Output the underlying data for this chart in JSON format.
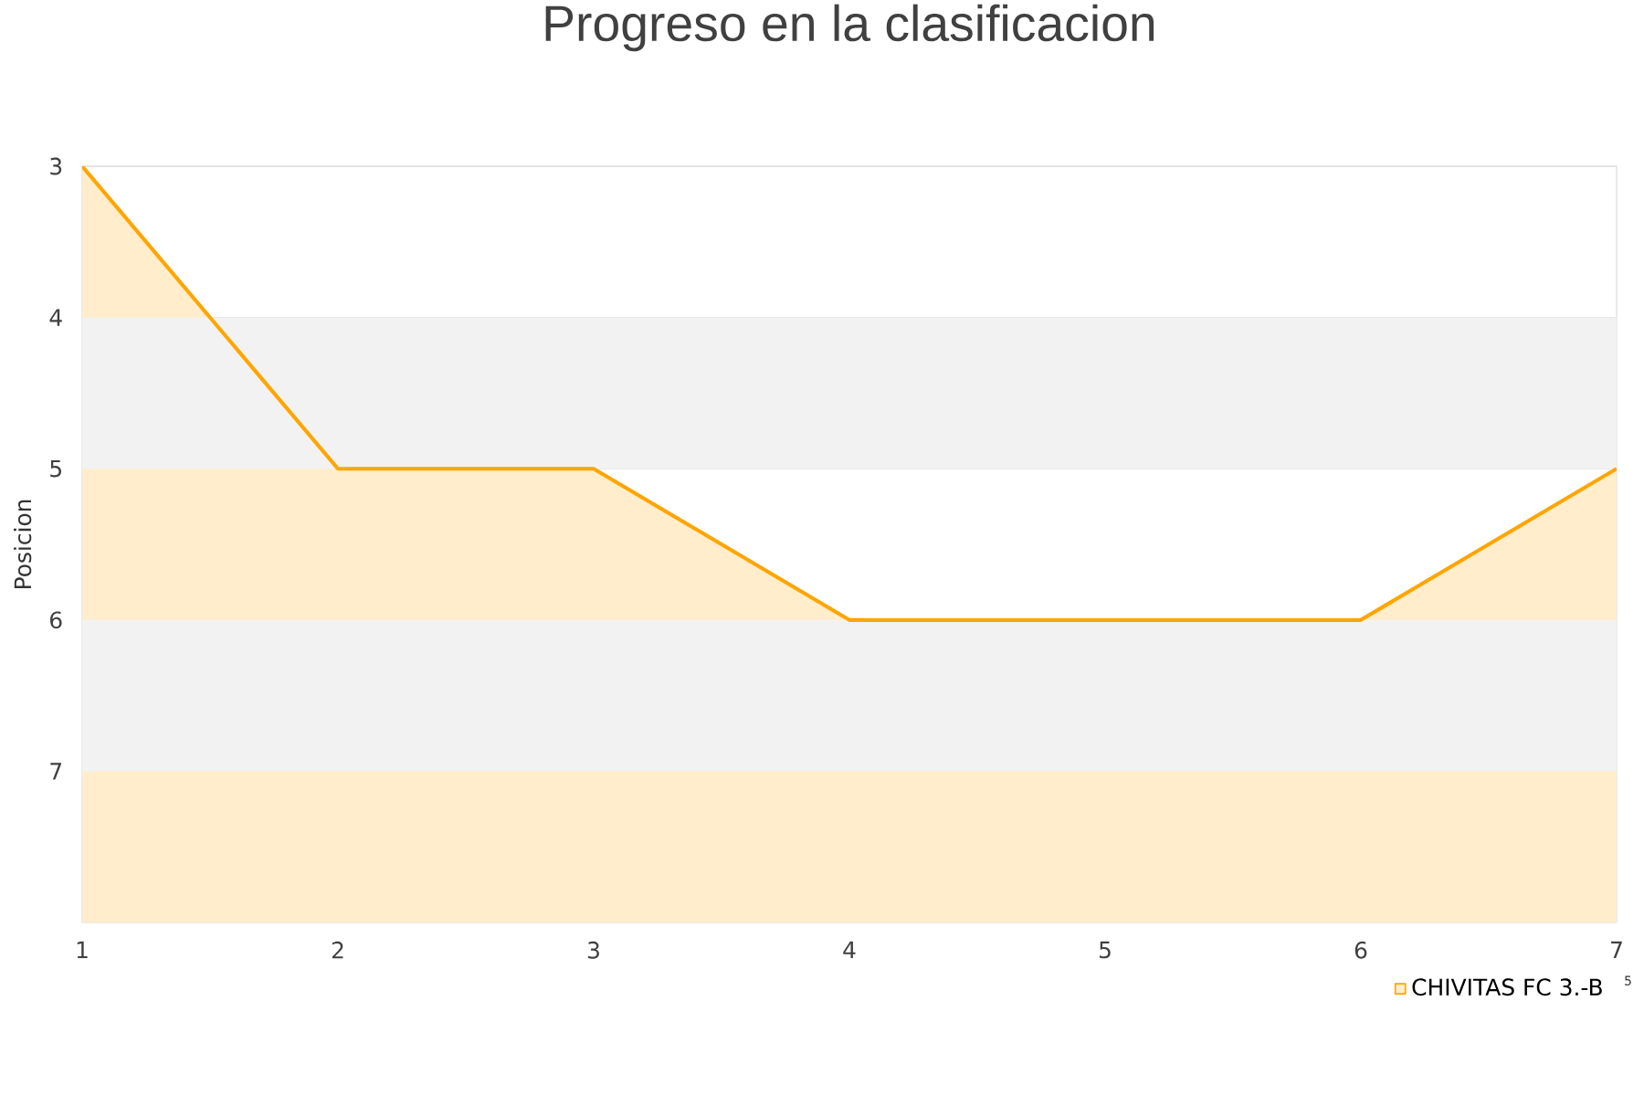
{
  "chart_data": {
    "type": "area",
    "title": "Progreso en la clasificacion",
    "ylabel": "Posicion",
    "x": [
      1,
      2,
      3,
      4,
      5,
      6,
      7
    ],
    "series": [
      {
        "name": "CHIVITAS FC 3.-B",
        "color": "#ffa500",
        "values": [
          3,
          5,
          5,
          6,
          6,
          6,
          5
        ]
      }
    ],
    "xlim": [
      1,
      7
    ],
    "xticks": [
      1,
      2,
      3,
      4,
      5,
      6,
      7
    ],
    "ylim": [
      8,
      3
    ],
    "yticks": [
      3,
      4,
      5,
      6,
      7
    ],
    "bands": [
      {
        "axis": "y",
        "from": 4,
        "to": 5,
        "color": "#f2f2f2"
      },
      {
        "axis": "y",
        "from": 6,
        "to": 7,
        "color": "#f2f2f2"
      }
    ],
    "grid": "y",
    "legend": "bottom right",
    "marker": "none",
    "line_style": "solid",
    "annotations": [
      "5"
    ]
  }
}
